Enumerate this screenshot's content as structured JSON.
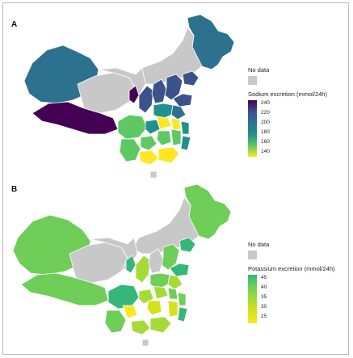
{
  "panels": [
    {
      "label": "A",
      "legend": {
        "nodata": "No data",
        "title": "Sodium excretion (mmol/24h)",
        "ticks": [
          "240",
          "220",
          "200",
          "180",
          "160",
          "140"
        ],
        "colors": [
          "#440154",
          "#3b528b",
          "#2c728e",
          "#21918c",
          "#5ec962",
          "#fde725"
        ]
      }
    },
    {
      "label": "B",
      "legend": {
        "nodata": "No data",
        "title": "Potassium excretion (mmol/24h)",
        "ticks": [
          "45",
          "40",
          "35",
          "30",
          "25"
        ],
        "colors": [
          "#35b779",
          "#6ece58",
          "#a5db36",
          "#d5e21a",
          "#fde725"
        ]
      }
    }
  ],
  "colors": {
    "nodata": "#c8c8c8",
    "border": "#ffffff"
  }
}
